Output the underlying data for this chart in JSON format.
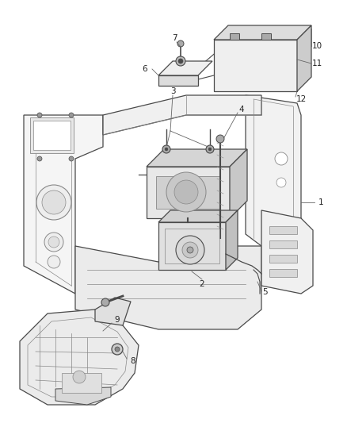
{
  "bg_color": "#ffffff",
  "fig_width": 4.38,
  "fig_height": 5.33,
  "dpi": 100,
  "line_color": "#4a4a4a",
  "light_line": "#888888",
  "fill_light": "#efefef",
  "fill_mid": "#dddddd",
  "fill_dark": "#cccccc",
  "label_fs": 7.5,
  "label_color": "#222222"
}
